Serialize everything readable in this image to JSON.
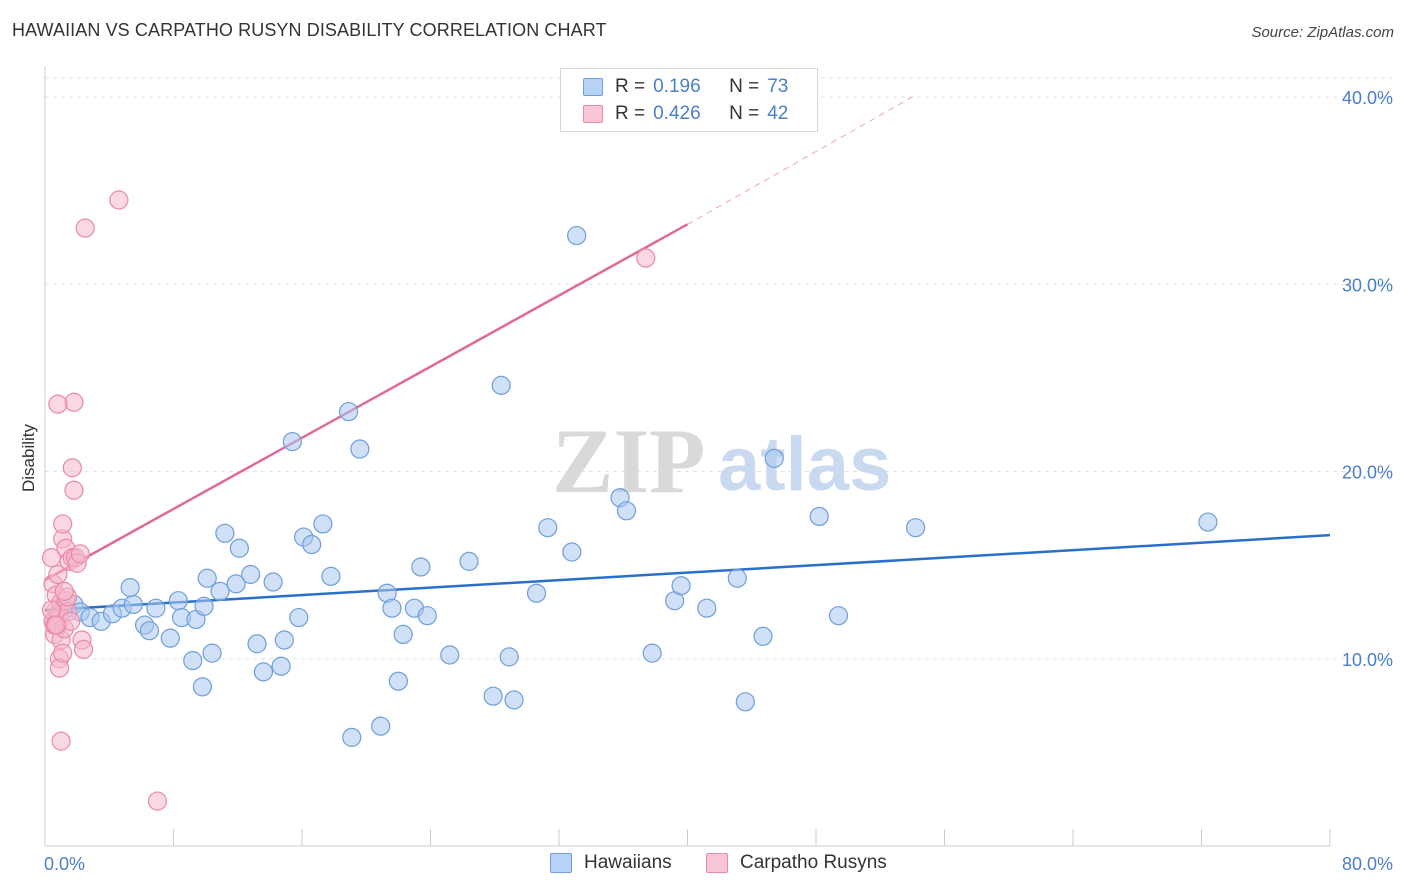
{
  "header": {
    "title": "HAWAIIAN VS CARPATHO RUSYN DISABILITY CORRELATION CHART",
    "source": "Source: ZipAtlas.com"
  },
  "legend": {
    "rows": [
      {
        "r_label": "R =",
        "r_value": "0.196",
        "n_label": "N =",
        "n_value": "73"
      },
      {
        "r_label": "R =",
        "r_value": "0.426",
        "n_label": "N =",
        "n_value": "42"
      }
    ]
  },
  "bottom_legend": {
    "items": [
      {
        "label": "Hawaiians"
      },
      {
        "label": "Carpatho Rusyns"
      }
    ]
  },
  "watermark": {
    "left": "ZIP",
    "right": "atlas"
  },
  "colors": {
    "blue_fill": "#a9c8f0",
    "blue_stroke": "#6f9ed9",
    "blue_line": "#2a6fc9",
    "pink_fill": "#f5b8cb",
    "pink_stroke": "#e88aa8",
    "pink_line": "#e0689a",
    "axis_text": "#4a7fc9",
    "grid": "#e3e3e3"
  },
  "chart_data": {
    "type": "scatter",
    "title": "HAWAIIAN VS CARPATHO RUSYN DISABILITY CORRELATION CHART",
    "xlabel": "",
    "ylabel": "Disability",
    "xlim": [
      0,
      80
    ],
    "ylim": [
      0,
      40
    ],
    "x_tick_labels": [
      "0.0%",
      "80.0%"
    ],
    "y_ticks": [
      10,
      20,
      30,
      40
    ],
    "y_tick_labels": [
      "10.0%",
      "20.0%",
      "30.0%",
      "40.0%"
    ],
    "grid": true,
    "legend_position": "top-center",
    "series": [
      {
        "name": "Hawaiians",
        "r": 0.196,
        "n": 73,
        "trend": {
          "x0": 0,
          "y0": 12.6,
          "x1": 80,
          "y1": 16.6
        },
        "points": [
          [
            0.8,
            12.4
          ],
          [
            1.2,
            12.6
          ],
          [
            1.8,
            12.9
          ],
          [
            2.2,
            12.5
          ],
          [
            2.8,
            12.2
          ],
          [
            3.5,
            12.0
          ],
          [
            4.2,
            12.4
          ],
          [
            4.8,
            12.7
          ],
          [
            5.5,
            12.9
          ],
          [
            5.3,
            13.8
          ],
          [
            6.2,
            11.8
          ],
          [
            6.5,
            11.5
          ],
          [
            6.9,
            12.7
          ],
          [
            7.8,
            11.1
          ],
          [
            8.3,
            13.1
          ],
          [
            8.5,
            12.2
          ],
          [
            9.4,
            12.1
          ],
          [
            9.9,
            12.8
          ],
          [
            10.4,
            10.3
          ],
          [
            10.9,
            13.6
          ],
          [
            11.2,
            16.7
          ],
          [
            11.9,
            14.0
          ],
          [
            12.1,
            15.9
          ],
          [
            12.8,
            14.5
          ],
          [
            13.2,
            10.8
          ],
          [
            13.6,
            9.3
          ],
          [
            14.2,
            14.1
          ],
          [
            14.9,
            11.0
          ],
          [
            15.4,
            21.6
          ],
          [
            15.8,
            12.2
          ],
          [
            16.1,
            16.5
          ],
          [
            16.6,
            16.1
          ],
          [
            17.3,
            17.2
          ],
          [
            17.8,
            14.4
          ],
          [
            18.9,
            23.2
          ],
          [
            19.6,
            21.2
          ],
          [
            19.1,
            5.8
          ],
          [
            20.9,
            6.4
          ],
          [
            21.3,
            13.5
          ],
          [
            21.6,
            12.7
          ],
          [
            22.3,
            11.3
          ],
          [
            22.0,
            8.8
          ],
          [
            23.0,
            12.7
          ],
          [
            23.8,
            12.3
          ],
          [
            23.4,
            14.9
          ],
          [
            25.2,
            10.2
          ],
          [
            26.4,
            15.2
          ],
          [
            27.9,
            8.0
          ],
          [
            28.9,
            10.1
          ],
          [
            29.2,
            7.8
          ],
          [
            30.6,
            13.5
          ],
          [
            31.3,
            17.0
          ],
          [
            32.8,
            15.7
          ],
          [
            35.8,
            18.6
          ],
          [
            36.2,
            17.9
          ],
          [
            37.8,
            10.3
          ],
          [
            39.2,
            13.1
          ],
          [
            39.6,
            13.9
          ],
          [
            41.2,
            12.7
          ],
          [
            43.1,
            14.3
          ],
          [
            43.6,
            7.7
          ],
          [
            44.7,
            11.2
          ],
          [
            45.4,
            20.7
          ],
          [
            48.2,
            17.6
          ],
          [
            49.4,
            12.3
          ],
          [
            54.2,
            17.0
          ],
          [
            72.4,
            17.3
          ],
          [
            28.4,
            24.6
          ],
          [
            33.1,
            32.6
          ],
          [
            9.8,
            8.5
          ],
          [
            9.2,
            9.9
          ],
          [
            10.1,
            14.3
          ],
          [
            14.7,
            9.6
          ]
        ]
      },
      {
        "name": "Carpatho Rusyns",
        "r": 0.426,
        "n": 42,
        "trend": {
          "x0": 0,
          "y0": 14.2,
          "x1": 40,
          "y1": 33.2
        },
        "trend_dashed_extension": {
          "x0": 40,
          "y0": 33.2,
          "x1": 54,
          "y1": 40.0
        },
        "points": [
          [
            0.4,
            15.4
          ],
          [
            0.5,
            14.0
          ],
          [
            0.5,
            12.0
          ],
          [
            0.6,
            11.3
          ],
          [
            0.7,
            13.4
          ],
          [
            0.7,
            12.6
          ],
          [
            0.8,
            11.8
          ],
          [
            0.8,
            14.5
          ],
          [
            0.9,
            10.0
          ],
          [
            0.9,
            9.5
          ],
          [
            0.9,
            12.3
          ],
          [
            1.0,
            11.0
          ],
          [
            1.0,
            13.0
          ],
          [
            1.1,
            16.4
          ],
          [
            1.1,
            17.2
          ],
          [
            1.2,
            11.6
          ],
          [
            1.3,
            15.9
          ],
          [
            1.3,
            13.1
          ],
          [
            1.4,
            12.5
          ],
          [
            1.5,
            15.2
          ],
          [
            1.6,
            12.0
          ],
          [
            1.7,
            15.4
          ],
          [
            1.7,
            20.2
          ],
          [
            1.8,
            19.0
          ],
          [
            1.8,
            23.7
          ],
          [
            1.9,
            15.4
          ],
          [
            2.0,
            15.1
          ],
          [
            2.2,
            15.6
          ],
          [
            2.3,
            11.0
          ],
          [
            0.8,
            23.6
          ],
          [
            2.4,
            10.5
          ],
          [
            1.1,
            10.3
          ],
          [
            0.4,
            12.6
          ],
          [
            1.0,
            5.6
          ],
          [
            1.4,
            13.3
          ],
          [
            0.6,
            11.8
          ],
          [
            1.2,
            13.6
          ],
          [
            2.5,
            33.0
          ],
          [
            4.6,
            34.5
          ],
          [
            7.0,
            2.4
          ],
          [
            37.4,
            31.4
          ],
          [
            0.7,
            11.8
          ]
        ]
      }
    ]
  }
}
